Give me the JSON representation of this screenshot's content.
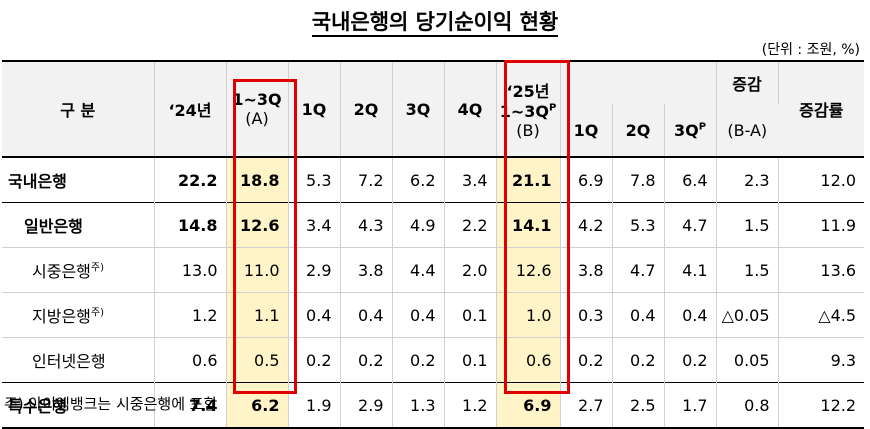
{
  "title": "국내은행의 당기순이익 현황",
  "unit": "(단위 : 조원, %)",
  "header": {
    "category": "구 분",
    "y24": "‘24년",
    "h24_line1": "1~3Q",
    "h24_line2": "(A)",
    "q1": "1Q",
    "q2": "2Q",
    "q3": "3Q",
    "q4": "4Q",
    "h25_line1": "‘25년",
    "h25_line2": "1~3Q",
    "h25_sup": "P",
    "h25_line3": "(B)",
    "q1b": "1Q",
    "q2b": "2Q",
    "q3b": "3Q",
    "q3b_sup": "P",
    "diff_line1": "증감",
    "diff_line2": "(B-A)",
    "rate": "증감률"
  },
  "rows": [
    {
      "label": "국내은행",
      "sup": "",
      "v": [
        "22.2",
        "18.8",
        "5.3",
        "7.2",
        "6.2",
        "3.4",
        "21.1",
        "6.9",
        "7.8",
        "6.4",
        "2.3",
        "12.0"
      ]
    },
    {
      "label": "일반은행",
      "sup": "",
      "v": [
        "14.8",
        "12.6",
        "3.4",
        "4.3",
        "4.9",
        "2.2",
        "14.1",
        "4.2",
        "5.3",
        "4.7",
        "1.5",
        "11.9"
      ]
    },
    {
      "label": "시중은행",
      "sup": "주)",
      "v": [
        "13.0",
        "11.0",
        "2.9",
        "3.8",
        "4.4",
        "2.0",
        "12.6",
        "3.8",
        "4.7",
        "4.1",
        "1.5",
        "13.6"
      ]
    },
    {
      "label": "지방은행",
      "sup": "주)",
      "v": [
        "1.2",
        "1.1",
        "0.4",
        "0.4",
        "0.4",
        "0.1",
        "1.0",
        "0.3",
        "0.4",
        "0.4",
        "△0.05",
        "△4.5"
      ]
    },
    {
      "label": "인터넷은행",
      "sup": "",
      "v": [
        "0.6",
        "0.5",
        "0.2",
        "0.2",
        "0.2",
        "0.1",
        "0.6",
        "0.2",
        "0.2",
        "0.2",
        "0.05",
        "9.3"
      ]
    },
    {
      "label": "특수은행",
      "sup": "",
      "v": [
        "7.4",
        "6.2",
        "1.9",
        "2.9",
        "1.3",
        "1.2",
        "6.9",
        "2.7",
        "2.5",
        "1.7",
        "0.8",
        "12.2"
      ]
    }
  ],
  "footnote": "주) 아이엠뱅크는 시중은행에 포함"
}
